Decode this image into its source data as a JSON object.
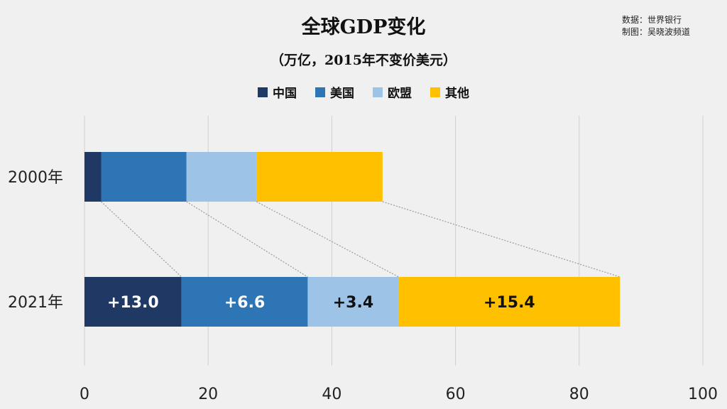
{
  "header": {
    "title": "全球GDP变化",
    "subtitle": "（万亿，2015年不变价美元）",
    "source_line1": "数据：世界银行",
    "source_line2": "制图：吴晓波频道"
  },
  "colors": {
    "china": "#1f3864",
    "usa": "#2e75b6",
    "eu": "#9dc3e6",
    "other": "#ffc000",
    "grid": "#d0d0d0"
  },
  "chart_data": {
    "type": "bar",
    "orientation": "horizontal",
    "stacked": true,
    "title": "全球GDP变化",
    "subtitle": "（万亿，2015年不变价美元）",
    "categories": [
      "2000年",
      "2021年"
    ],
    "series": [
      {
        "name": "中国",
        "color": "#1f3864",
        "values": [
          2.7,
          15.7
        ]
      },
      {
        "name": "美国",
        "color": "#2e75b6",
        "values": [
          13.8,
          20.4
        ]
      },
      {
        "name": "欧盟",
        "color": "#9dc3e6",
        "values": [
          11.3,
          14.7
        ]
      },
      {
        "name": "其他",
        "color": "#ffc000",
        "values": [
          20.4,
          35.8
        ]
      }
    ],
    "change_labels": [
      "+13.0",
      "+6.6",
      "+3.4",
      "+15.4"
    ],
    "xlim": [
      0,
      100
    ],
    "xticks": [
      0,
      20,
      40,
      60,
      80,
      100
    ],
    "grid": "vertical",
    "legend_position": "top-center"
  }
}
